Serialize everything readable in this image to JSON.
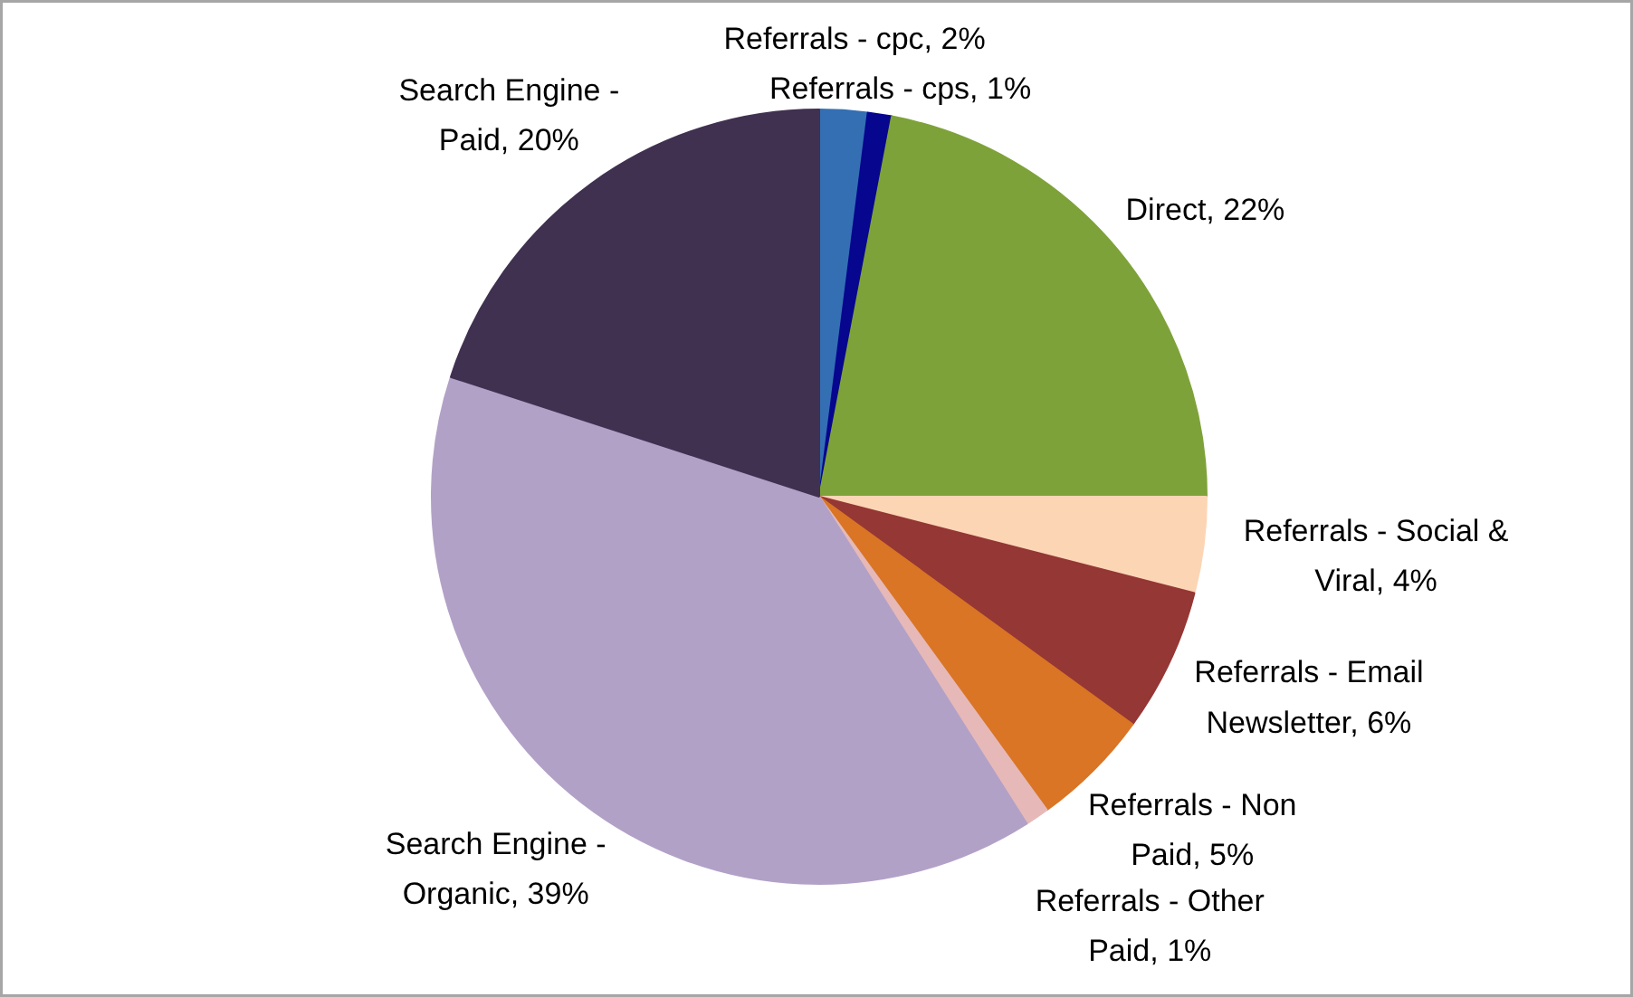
{
  "chart_data": {
    "type": "pie",
    "categories": [
      "Referrals - cpc",
      "Referrals - cps",
      "Direct",
      "Referrals - Social & Viral",
      "Referrals - Email Newsletter",
      "Referrals - Non Paid",
      "Referrals - Other Paid",
      "Search Engine - Organic",
      "Search Engine - Paid"
    ],
    "values": [
      2,
      1,
      22,
      4,
      6,
      5,
      1,
      39,
      20
    ],
    "colors": [
      "#346fb4",
      "#06068f",
      "#7ea23a",
      "#fcd5b5",
      "#953735",
      "#d97525",
      "#e6b9b8",
      "#b2a1c7",
      "#403151"
    ],
    "value_labels": [
      "2%",
      "1%",
      "22%",
      "4%",
      "6%",
      "5%",
      "1%",
      "39%",
      "20%"
    ]
  }
}
